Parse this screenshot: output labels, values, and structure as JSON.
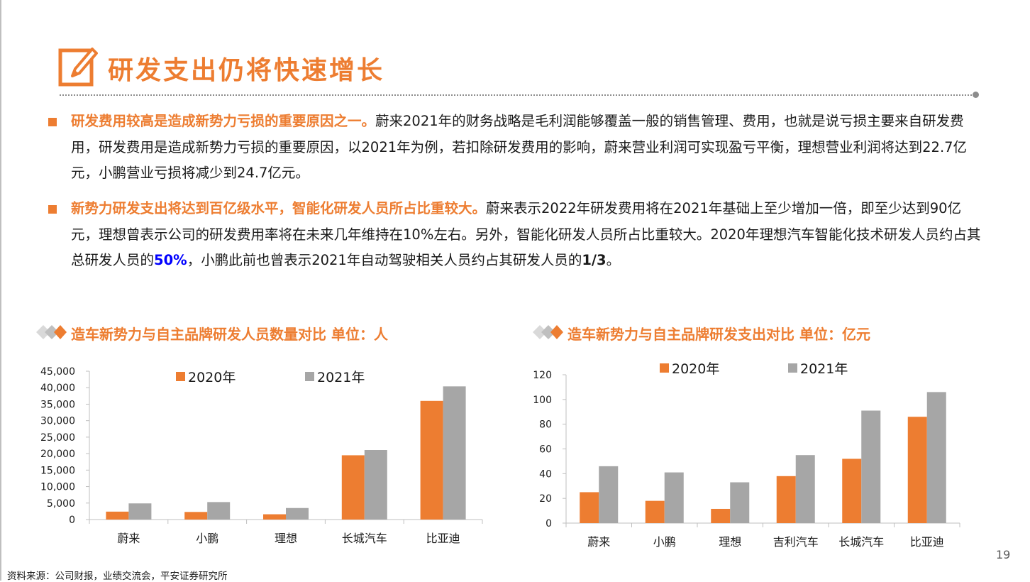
{
  "page": {
    "title": "研发支出仍将快速增长",
    "page_number": "19",
    "source": "资料来源：公司财报，业绩交流会，平安证券研究所",
    "accent_color": "#ed7d31",
    "grey_color": "#a6a6a6",
    "highlight_color": "#0000ff"
  },
  "bullets": [
    {
      "lead": "研发费用较高是造成新势力亏损的重要原因之一。",
      "body": "蔚来2021年的财务战略是毛利润能够覆盖一般的销售管理、费用，也就是说亏损主要来自研发费用，研发费用是造成新势力亏损的重要原因，以2021年为例，若扣除研发费用的影响，蔚来营业利润可实现盈亏平衡，理想营业利润将达到22.7亿元，小鹏营业亏损将减少到24.7亿元。"
    },
    {
      "lead": "新势力研发支出将达到百亿级水平，智能化研发人员所占比重较大。",
      "body_a": "蔚来表示2022年研发费用将在2021年基础上至少增加一倍，即至少达到90亿元，理想曾表示公司的研发费用率将在未来几年维持在10%左右。另外，智能化研发人员所占比重较大。2020年理想汽车智能化技术研发人员约占其总研发人员的",
      "highlight": "50%",
      "body_b": "，小鹏此前也曾表示2021年自动驾驶相关人员约占其研发人员的",
      "bold_end": "1/3",
      "body_c": "。"
    }
  ],
  "chart_titles": [
    "造车新势力与自主品牌研发人员数量对比   单位：人",
    "造车新势力与自主品牌研发支出对比   单位：亿元"
  ],
  "chart_data": [
    {
      "type": "bar",
      "categories": [
        "蔚来",
        "小鹏",
        "理想",
        "长城汽车",
        "比亚迪"
      ],
      "series": [
        {
          "name": "2020年",
          "values": [
            2400,
            2300,
            1600,
            19500,
            36000
          ],
          "color": "#ed7d31"
        },
        {
          "name": "2021年",
          "values": [
            4900,
            5300,
            3500,
            21100,
            40400
          ],
          "color": "#a6a6a6"
        }
      ],
      "ylim": [
        0,
        45000
      ],
      "yticks": [
        0,
        5000,
        10000,
        15000,
        20000,
        25000,
        30000,
        35000,
        40000,
        45000
      ],
      "ytick_labels": [
        "0",
        "5,000",
        "10,000",
        "15,000",
        "20,000",
        "25,000",
        "30,000",
        "35,000",
        "40,000",
        "45,000"
      ],
      "grid": false,
      "legend": "top"
    },
    {
      "type": "bar",
      "categories": [
        "蔚来",
        "小鹏",
        "理想",
        "吉利汽车",
        "长城汽车",
        "比亚迪"
      ],
      "series": [
        {
          "name": "2020年",
          "values": [
            25,
            18,
            11.5,
            38,
            52,
            86
          ],
          "color": "#ed7d31"
        },
        {
          "name": "2021年",
          "values": [
            46,
            41,
            33,
            55,
            91,
            106
          ],
          "color": "#a6a6a6"
        }
      ],
      "ylim": [
        0,
        120
      ],
      "yticks": [
        0,
        20,
        40,
        60,
        80,
        100,
        120
      ],
      "ytick_labels": [
        "0",
        "20",
        "40",
        "60",
        "80",
        "100",
        "120"
      ],
      "grid": false,
      "legend": "top"
    }
  ]
}
